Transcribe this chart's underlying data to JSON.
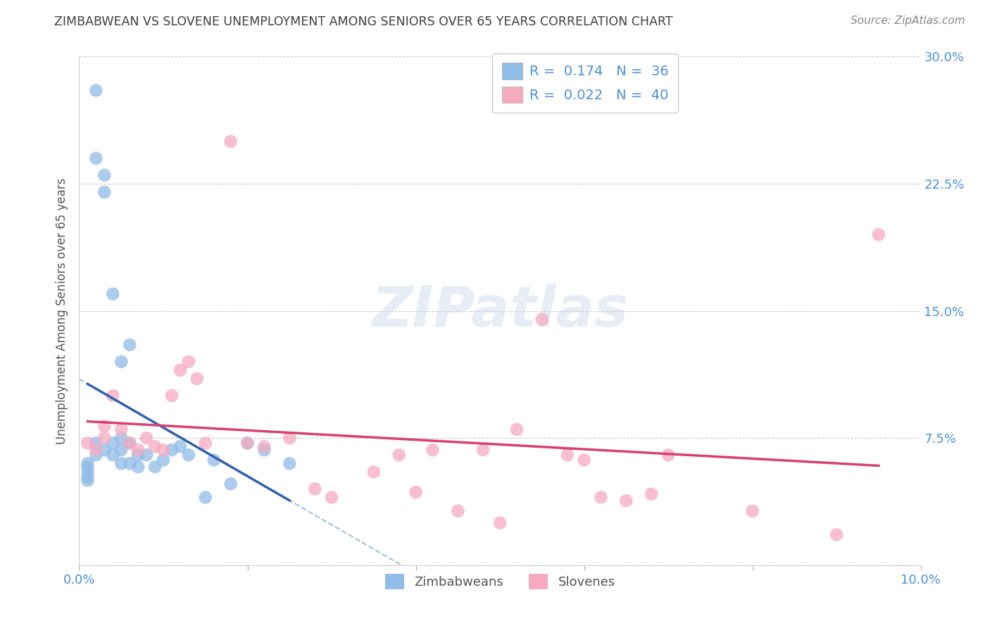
{
  "title": "ZIMBABWEAN VS SLOVENE UNEMPLOYMENT AMONG SENIORS OVER 65 YEARS CORRELATION CHART",
  "source": "Source: ZipAtlas.com",
  "ylabel": "Unemployment Among Seniors over 65 years",
  "watermark": "ZIPatlas",
  "xlim": [
    0.0,
    0.1
  ],
  "ylim": [
    0.0,
    0.3
  ],
  "xticks": [
    0.0,
    0.02,
    0.04,
    0.06,
    0.08,
    0.1
  ],
  "yticks": [
    0.0,
    0.075,
    0.15,
    0.225,
    0.3
  ],
  "legend_labels": [
    "Zimbabweans",
    "Slovenes"
  ],
  "zim_R": "0.174",
  "zim_N": "36",
  "slov_R": "0.022",
  "slov_N": "40",
  "zim_color": "#90bce8",
  "slov_color": "#f5aac0",
  "zim_line_color": "#3060b0",
  "slov_line_color": "#d84070",
  "dash_line_color": "#a0c0d8",
  "background": "#ffffff",
  "zim_x": [
    0.001,
    0.001,
    0.001,
    0.001,
    0.001,
    0.002,
    0.002,
    0.002,
    0.002,
    0.003,
    0.003,
    0.003,
    0.004,
    0.004,
    0.004,
    0.005,
    0.005,
    0.005,
    0.005,
    0.006,
    0.006,
    0.006,
    0.007,
    0.007,
    0.008,
    0.009,
    0.01,
    0.011,
    0.012,
    0.013,
    0.015,
    0.016,
    0.018,
    0.02,
    0.022,
    0.025
  ],
  "zim_y": [
    0.06,
    0.058,
    0.055,
    0.052,
    0.05,
    0.28,
    0.24,
    0.072,
    0.065,
    0.23,
    0.22,
    0.068,
    0.16,
    0.072,
    0.065,
    0.12,
    0.075,
    0.068,
    0.06,
    0.13,
    0.072,
    0.06,
    0.065,
    0.058,
    0.065,
    0.058,
    0.062,
    0.068,
    0.07,
    0.065,
    0.04,
    0.062,
    0.048,
    0.072,
    0.068,
    0.06
  ],
  "slov_x": [
    0.001,
    0.002,
    0.003,
    0.003,
    0.004,
    0.005,
    0.006,
    0.007,
    0.008,
    0.009,
    0.01,
    0.011,
    0.012,
    0.013,
    0.014,
    0.015,
    0.018,
    0.02,
    0.022,
    0.025,
    0.028,
    0.03,
    0.035,
    0.038,
    0.04,
    0.042,
    0.045,
    0.048,
    0.05,
    0.052,
    0.055,
    0.058,
    0.06,
    0.062,
    0.065,
    0.068,
    0.07,
    0.08,
    0.09,
    0.095
  ],
  "slov_y": [
    0.072,
    0.068,
    0.082,
    0.075,
    0.1,
    0.08,
    0.072,
    0.068,
    0.075,
    0.07,
    0.068,
    0.1,
    0.115,
    0.12,
    0.11,
    0.072,
    0.25,
    0.072,
    0.07,
    0.075,
    0.045,
    0.04,
    0.055,
    0.065,
    0.043,
    0.068,
    0.032,
    0.068,
    0.025,
    0.08,
    0.145,
    0.065,
    0.062,
    0.04,
    0.038,
    0.042,
    0.065,
    0.032,
    0.018,
    0.195
  ]
}
